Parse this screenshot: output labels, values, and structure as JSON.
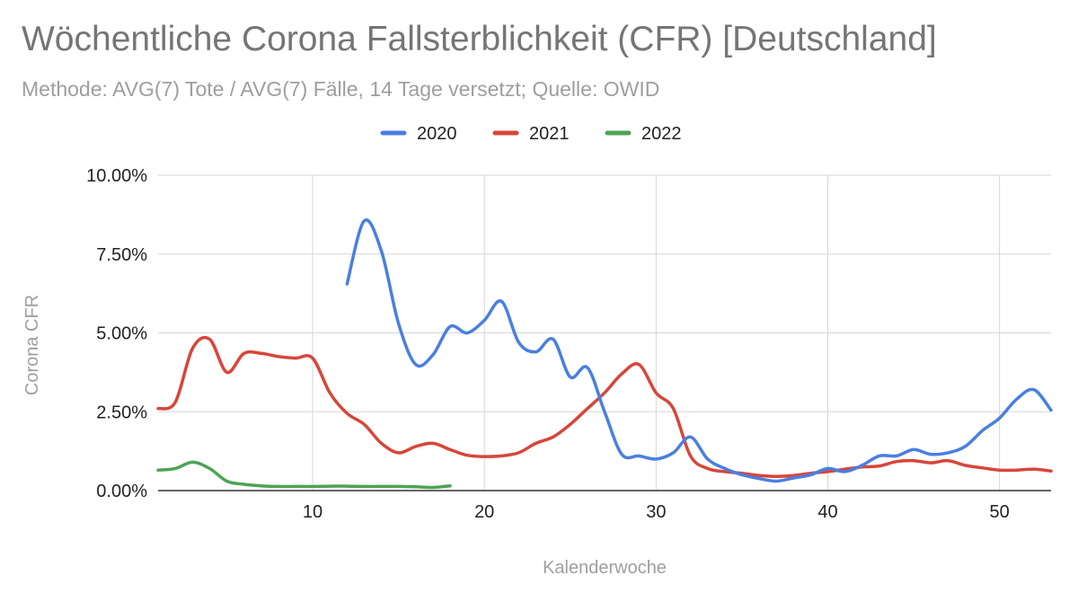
{
  "title": "Wöchentliche Corona Fallsterblichkeit (CFR) [Deutschland]",
  "subtitle": "Methode: AVG(7) Tote / AVG(7) Fälle, 14 Tage versetzt; Quelle: OWID",
  "chart_data": {
    "type": "line",
    "title": "Wöchentliche Corona Fallsterblichkeit (CFR) [Deutschland]",
    "subtitle": "Methode: AVG(7) Tote / AVG(7) Fälle, 14 Tage versetzt; Quelle: OWID",
    "xlabel": "Kalenderwoche",
    "ylabel": "Corona CFR",
    "xlim": [
      1,
      53
    ],
    "ylim": [
      0,
      10
    ],
    "x_ticks": [
      10,
      20,
      30,
      40,
      50
    ],
    "x_tick_labels": [
      "10",
      "20",
      "30",
      "40",
      "50"
    ],
    "y_ticks": [
      0,
      2.5,
      5,
      7.5,
      10
    ],
    "y_tick_labels": [
      "0.00%",
      "2.50%",
      "5.00%",
      "7.50%",
      "10.00%"
    ],
    "grid": true,
    "legend_position": "top-center",
    "series": [
      {
        "name": "2020",
        "color": "#4a7fe0",
        "x": [
          12,
          13,
          14,
          15,
          16,
          17,
          18,
          19,
          20,
          21,
          22,
          23,
          24,
          25,
          26,
          27,
          28,
          29,
          30,
          31,
          32,
          33,
          34,
          35,
          36,
          37,
          38,
          39,
          40,
          41,
          42,
          43,
          44,
          45,
          46,
          47,
          48,
          49,
          50,
          51,
          52,
          53
        ],
        "values": [
          6.55,
          8.55,
          7.6,
          5.3,
          4.0,
          4.3,
          5.2,
          5.0,
          5.4,
          6.0,
          4.7,
          4.4,
          4.8,
          3.6,
          3.9,
          2.5,
          1.15,
          1.1,
          1.0,
          1.2,
          1.7,
          1.0,
          0.7,
          0.5,
          0.38,
          0.3,
          0.4,
          0.5,
          0.7,
          0.6,
          0.8,
          1.1,
          1.1,
          1.3,
          1.15,
          1.2,
          1.4,
          1.9,
          2.3,
          2.9,
          3.2,
          2.55
        ]
      },
      {
        "name": "2021",
        "color": "#d7463a",
        "x": [
          1,
          2,
          3,
          4,
          5,
          6,
          7,
          8,
          9,
          10,
          11,
          12,
          13,
          14,
          15,
          16,
          17,
          18,
          19,
          20,
          21,
          22,
          23,
          24,
          25,
          26,
          27,
          28,
          29,
          30,
          31,
          32,
          33,
          34,
          35,
          36,
          37,
          38,
          39,
          40,
          41,
          42,
          43,
          44,
          45,
          46,
          47,
          48,
          49,
          50,
          51,
          52,
          53
        ],
        "values": [
          2.6,
          2.8,
          4.5,
          4.8,
          3.75,
          4.35,
          4.35,
          4.25,
          4.2,
          4.2,
          3.1,
          2.45,
          2.1,
          1.5,
          1.2,
          1.4,
          1.5,
          1.3,
          1.12,
          1.08,
          1.1,
          1.2,
          1.5,
          1.7,
          2.1,
          2.6,
          3.1,
          3.7,
          4.0,
          3.1,
          2.6,
          1.1,
          0.7,
          0.6,
          0.55,
          0.48,
          0.45,
          0.48,
          0.55,
          0.6,
          0.68,
          0.75,
          0.78,
          0.92,
          0.95,
          0.88,
          0.95,
          0.8,
          0.72,
          0.65,
          0.65,
          0.68,
          0.62
        ]
      },
      {
        "name": "2022",
        "color": "#4ea454",
        "x": [
          1,
          2,
          3,
          4,
          5,
          6,
          7,
          8,
          9,
          10,
          11,
          12,
          13,
          14,
          15,
          16,
          17,
          18
        ],
        "values": [
          0.65,
          0.7,
          0.9,
          0.7,
          0.3,
          0.2,
          0.15,
          0.13,
          0.13,
          0.13,
          0.14,
          0.14,
          0.13,
          0.13,
          0.13,
          0.12,
          0.1,
          0.15
        ]
      }
    ]
  }
}
